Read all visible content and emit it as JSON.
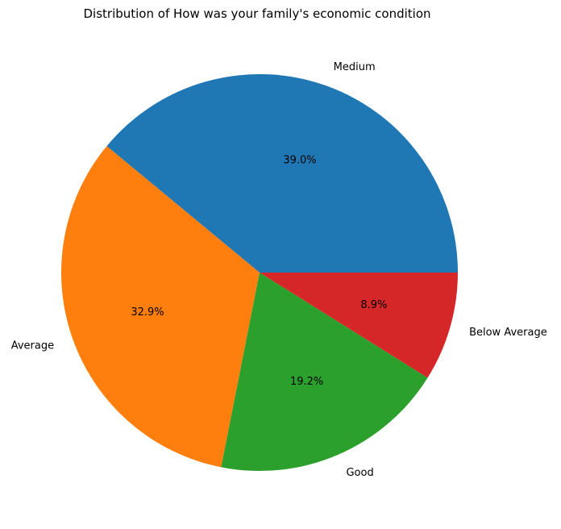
{
  "chart_data": {
    "type": "pie",
    "title": "Distribution of How was your family's economic condition",
    "slices": [
      {
        "label": "Medium",
        "value": 39.0,
        "display": "39.0%",
        "color": "#1f77b4"
      },
      {
        "label": "Average",
        "value": 32.9,
        "display": "32.9%",
        "color": "#ff7f0e"
      },
      {
        "label": "Good",
        "value": 19.2,
        "display": "19.2%",
        "color": "#2ca02c"
      },
      {
        "label": "Below Average",
        "value": 8.9,
        "display": "8.9%",
        "color": "#d62728"
      }
    ],
    "start_angle_deg": 0,
    "direction": "counterclockwise",
    "legend": "none"
  }
}
